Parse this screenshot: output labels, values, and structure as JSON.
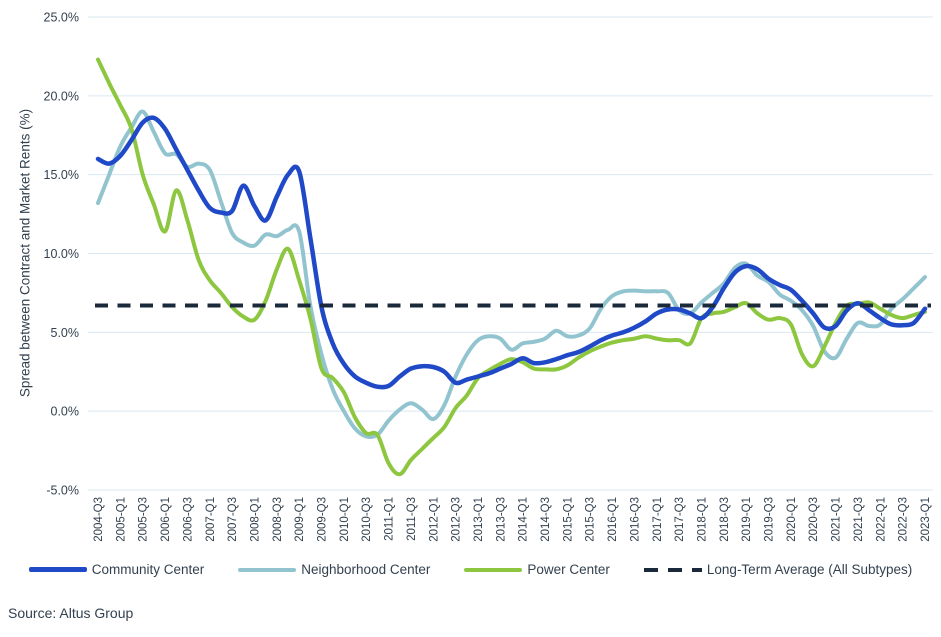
{
  "chart_data": {
    "type": "line",
    "title": "",
    "xlabel": "",
    "ylabel": "Spread between Contract and Market Rents (%)",
    "ylim": [
      -5,
      25
    ],
    "grid": "horizontal",
    "legend_position": "bottom",
    "yticks": {
      "values": [
        25,
        20,
        15,
        10,
        5,
        0,
        -5
      ],
      "labels": [
        "25.0%",
        "20.0%",
        "15.0%",
        "10.0%",
        "5.0%",
        "0.0%",
        "-5.0%"
      ]
    },
    "x_start": "2004-Q3",
    "x_end": "2023-Q1",
    "x_frequency": "quarterly",
    "x_tick_labels": [
      "2004-Q3",
      "2005-Q1",
      "2005-Q3",
      "2006-Q1",
      "2006-Q3",
      "2007-Q1",
      "2007-Q3",
      "2008-Q1",
      "2008-Q3",
      "2009-Q1",
      "2009-Q3",
      "2010-Q1",
      "2010-Q3",
      "2011-Q1",
      "2011-Q3",
      "2012-Q1",
      "2012-Q3",
      "2013-Q1",
      "2013-Q3",
      "2014-Q1",
      "2014-Q3",
      "2015-Q1",
      "2015-Q3",
      "2016-Q1",
      "2016-Q3",
      "2017-Q1",
      "2017-Q3",
      "2018-Q1",
      "2018-Q3",
      "2019-Q1",
      "2019-Q3",
      "2020-Q1",
      "2020-Q3",
      "2021-Q1",
      "2021-Q3",
      "2022-Q1",
      "2022-Q3",
      "2023-Q1"
    ],
    "series": [
      {
        "name": "Community Center",
        "color": "#1f49c7",
        "style": "solid",
        "values": [
          16.0,
          15.7,
          16.2,
          17.2,
          18.3,
          18.6,
          17.9,
          16.6,
          15.3,
          14.0,
          12.9,
          12.6,
          12.7,
          14.3,
          13.0,
          12.1,
          13.6,
          15.0,
          15.2,
          11.0,
          6.6,
          4.3,
          3.0,
          2.2,
          1.8,
          1.55,
          1.6,
          2.2,
          2.7,
          2.85,
          2.8,
          2.5,
          1.8,
          2.0,
          2.2,
          2.4,
          2.7,
          3.0,
          3.35,
          3.05,
          3.1,
          3.3,
          3.55,
          3.75,
          4.1,
          4.5,
          4.8,
          5.0,
          5.3,
          5.7,
          6.2,
          6.45,
          6.45,
          6.2,
          5.9,
          6.6,
          7.8,
          8.8,
          9.2,
          9.0,
          8.4,
          8.0,
          7.7,
          7.0,
          6.2,
          5.3,
          5.4,
          6.4,
          6.85,
          6.4,
          5.9,
          5.5,
          5.45,
          5.6,
          6.5
        ]
      },
      {
        "name": "Neighborhood Center",
        "color": "#92c4d0",
        "style": "solid",
        "values": [
          13.2,
          15.0,
          16.8,
          18.0,
          19.0,
          17.7,
          16.35,
          16.3,
          15.5,
          15.7,
          15.3,
          13.3,
          11.3,
          10.7,
          10.5,
          11.2,
          11.1,
          11.5,
          11.4,
          6.7,
          3.6,
          1.4,
          0.0,
          -1.1,
          -1.6,
          -1.5,
          -0.6,
          0.1,
          0.5,
          0.1,
          -0.5,
          0.4,
          2.2,
          3.6,
          4.5,
          4.75,
          4.6,
          3.9,
          4.3,
          4.4,
          4.6,
          5.1,
          4.75,
          4.8,
          5.25,
          6.5,
          7.3,
          7.6,
          7.65,
          7.6,
          7.6,
          7.5,
          6.4,
          6.2,
          6.9,
          7.5,
          8.1,
          9.1,
          9.35,
          8.6,
          8.2,
          7.4,
          7.0,
          6.4,
          5.4,
          3.8,
          3.4,
          4.6,
          5.6,
          5.4,
          5.5,
          6.5,
          7.1,
          7.8,
          8.5
        ]
      },
      {
        "name": "Power Center",
        "color": "#8dc63f",
        "style": "solid",
        "values": [
          22.3,
          20.8,
          19.4,
          17.9,
          15.0,
          13.1,
          11.4,
          14.0,
          12.1,
          9.6,
          8.3,
          7.5,
          6.6,
          6.0,
          5.8,
          7.0,
          9.0,
          10.3,
          8.3,
          5.9,
          2.7,
          2.1,
          1.2,
          -0.4,
          -1.4,
          -1.5,
          -3.3,
          -4.0,
          -3.1,
          -2.4,
          -1.7,
          -1.0,
          0.2,
          1.0,
          2.1,
          2.6,
          3.0,
          3.3,
          3.1,
          2.7,
          2.65,
          2.65,
          2.9,
          3.4,
          3.8,
          4.1,
          4.35,
          4.5,
          4.6,
          4.75,
          4.6,
          4.5,
          4.5,
          4.3,
          5.9,
          6.2,
          6.3,
          6.6,
          6.85,
          6.2,
          5.8,
          5.9,
          5.5,
          3.6,
          2.85,
          4.1,
          5.6,
          6.7,
          6.8,
          6.9,
          6.5,
          6.1,
          5.9,
          6.1,
          6.3
        ]
      },
      {
        "name": "Long-Term Average (All Subtypes)",
        "color": "#1b2a3b",
        "style": "dashed",
        "value": 6.7
      }
    ]
  },
  "source": "Source: Altus Group"
}
